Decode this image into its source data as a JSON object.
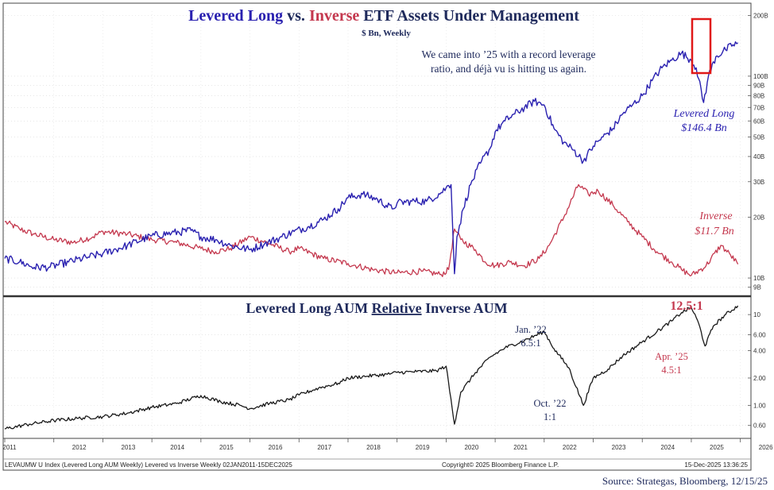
{
  "colors": {
    "levered": "#2a21b0",
    "inverse": "#c4384e",
    "ratio": "#1a1a1a",
    "title_navy": "#1f2a5c",
    "highlight_box": "#e01818"
  },
  "top_chart": {
    "title_part1": "Levered Long",
    "title_part2": " vs. ",
    "title_part3": "Inverse",
    "title_part4": " ETF Assets Under Management",
    "subtitle": "$ Bn, Weekly",
    "annotation_line1": "We came into ’25 with a record leverage",
    "annotation_line2": "ratio, and déjà vu is hitting us again.",
    "levered_label": "Levered Long",
    "levered_value": "$146.4 Bn",
    "inverse_label": "Inverse",
    "inverse_value": "$11.7 Bn"
  },
  "bottom_chart": {
    "title_part1": "Levered Long AUM ",
    "title_part2": "Relative",
    "title_part3": " Inverse AUM",
    "current_label": "12.5:1",
    "jan22_line1": "Jan. ’22",
    "jan22_line2": "6.5:1",
    "oct22_line1": "Oct. ’22",
    "oct22_line2": "1:1",
    "apr25_line1": "Apr. ’25",
    "apr25_line2": "4.5:1"
  },
  "footer": {
    "index_text": "LEVAUMW U Index (Levered Long AUM Weekly) Levered vs Inverse Weekly 02JAN2011-15DEC2025",
    "copyright": "Copyright© 2025 Bloomberg Finance L.P.",
    "timestamp": "15-Dec-2025 13:36:25",
    "source": "Source: Strategas, Bloomberg, 12/15/25"
  },
  "chart_data": [
    {
      "type": "line",
      "title": "Levered Long vs. Inverse ETF Assets Under Management",
      "subtitle": "$ Bn, Weekly",
      "yscale": "log",
      "ylim": [
        8.5,
        210
      ],
      "y_tick_labels": [
        "9B",
        "10B",
        "20B",
        "30B",
        "40B",
        "50B",
        "60B",
        "70B",
        "80B",
        "90B",
        "100B",
        "200B"
      ],
      "y_tick_values": [
        9,
        10,
        20,
        30,
        40,
        50,
        60,
        70,
        80,
        90,
        100,
        200
      ],
      "x_tick_labels": [
        "2011",
        "2012",
        "2013",
        "2014",
        "2015",
        "2016",
        "2017",
        "2018",
        "2019",
        "2020",
        "2021",
        "2022",
        "2023",
        "2024",
        "2025",
        "2026"
      ],
      "xlim": [
        2011.0,
        2026.2
      ],
      "series": [
        {
          "name": "Levered Long",
          "x": [
            2011.0,
            2011.3,
            2011.6,
            2011.9,
            2012.3,
            2012.7,
            2013.0,
            2013.5,
            2014.0,
            2014.4,
            2014.8,
            2015.0,
            2015.3,
            2015.6,
            2016.0,
            2016.3,
            2016.6,
            2016.9,
            2017.2,
            2017.5,
            2017.8,
            2018.0,
            2018.3,
            2018.6,
            2018.9,
            2019.0,
            2019.3,
            2019.6,
            2019.9,
            2020.0,
            2020.1,
            2020.17,
            2020.22,
            2020.35,
            2020.5,
            2020.7,
            2020.9,
            2021.0,
            2021.2,
            2021.4,
            2021.6,
            2021.8,
            2022.0,
            2022.2,
            2022.4,
            2022.6,
            2022.8,
            2023.0,
            2023.2,
            2023.4,
            2023.6,
            2023.8,
            2024.0,
            2024.2,
            2024.4,
            2024.6,
            2024.8,
            2025.0,
            2025.1,
            2025.25,
            2025.35,
            2025.5,
            2025.7,
            2025.85,
            2025.95
          ],
          "values": [
            12.5,
            12.0,
            11.3,
            11.3,
            12.0,
            12.7,
            13.2,
            14.5,
            16.2,
            16.7,
            17.2,
            16.0,
            15.5,
            14.5,
            13.8,
            14.8,
            15.8,
            17.0,
            18.0,
            19.5,
            22.0,
            25.0,
            26.0,
            24.5,
            22.0,
            23.5,
            24.0,
            24.0,
            26.5,
            28.0,
            29.0,
            10.5,
            16.0,
            22.0,
            29.0,
            37.0,
            44.0,
            53.0,
            60.0,
            65.0,
            70.0,
            75.0,
            72.0,
            55.0,
            47.0,
            43.0,
            38.0,
            45.0,
            50.0,
            55.0,
            65.0,
            72.0,
            80.0,
            95.0,
            110.0,
            120.0,
            130.0,
            120.0,
            110.0,
            74.0,
            100.0,
            125.0,
            135.0,
            143.0,
            146.4
          ]
        },
        {
          "name": "Inverse",
          "x": [
            2011.0,
            2011.3,
            2011.6,
            2012.0,
            2012.4,
            2012.8,
            2013.0,
            2013.5,
            2014.0,
            2014.5,
            2015.0,
            2015.3,
            2015.6,
            2016.0,
            2016.4,
            2016.8,
            2017.0,
            2017.5,
            2018.0,
            2018.5,
            2019.0,
            2019.5,
            2019.9,
            2020.05,
            2020.17,
            2020.3,
            2020.6,
            2020.8,
            2021.0,
            2021.3,
            2021.6,
            2021.9,
            2022.1,
            2022.4,
            2022.7,
            2022.9,
            2023.1,
            2023.4,
            2023.7,
            2024.0,
            2024.3,
            2024.6,
            2024.8,
            2025.0,
            2025.3,
            2025.6,
            2025.8,
            2025.95
          ],
          "values": [
            19.0,
            17.5,
            16.5,
            15.5,
            15.0,
            16.0,
            17.0,
            16.5,
            15.5,
            15.0,
            14.0,
            13.5,
            14.0,
            16.0,
            14.8,
            13.5,
            14.0,
            12.5,
            11.8,
            11.0,
            10.6,
            10.8,
            10.4,
            11.0,
            17.5,
            15.5,
            13.8,
            12.0,
            11.5,
            12.0,
            11.5,
            12.5,
            14.5,
            20.0,
            29.0,
            26.0,
            27.0,
            23.0,
            19.0,
            16.0,
            13.5,
            12.0,
            11.0,
            10.3,
            11.5,
            14.5,
            13.0,
            11.7
          ]
        }
      ]
    },
    {
      "type": "line",
      "title": "Levered Long AUM Relative Inverse AUM",
      "yscale": "log",
      "ylim": [
        0.45,
        15
      ],
      "y_tick_labels": [
        "0.60",
        "1.00",
        "2.00",
        "4.00",
        "6.00",
        "10"
      ],
      "y_tick_values": [
        0.6,
        1.0,
        2.0,
        4.0,
        6.0,
        10
      ],
      "x_tick_labels": [
        "2011",
        "2012",
        "2013",
        "2014",
        "2015",
        "2016",
        "2017",
        "2018",
        "2019",
        "2020",
        "2021",
        "2022",
        "2023",
        "2024",
        "2025",
        "2026"
      ],
      "xlim": [
        2011.0,
        2026.2
      ],
      "series": [
        {
          "name": "Levered Long / Inverse ratio",
          "x": [
            2011.0,
            2011.5,
            2012.0,
            2012.5,
            2013.0,
            2013.5,
            2014.0,
            2014.5,
            2015.0,
            2015.4,
            2015.8,
            2016.0,
            2016.4,
            2016.8,
            2017.0,
            2017.4,
            2017.8,
            2018.0,
            2018.4,
            2018.8,
            2019.0,
            2019.4,
            2019.8,
            2020.0,
            2020.17,
            2020.3,
            2020.6,
            2020.9,
            2021.2,
            2021.6,
            2022.0,
            2022.2,
            2022.5,
            2022.8,
            2023.0,
            2023.3,
            2023.6,
            2024.0,
            2024.3,
            2024.6,
            2024.8,
            2025.0,
            2025.15,
            2025.28,
            2025.45,
            2025.7,
            2025.95
          ],
          "values": [
            0.55,
            0.62,
            0.68,
            0.72,
            0.75,
            0.82,
            0.95,
            1.05,
            1.28,
            1.1,
            1.0,
            0.92,
            1.05,
            1.15,
            1.3,
            1.55,
            1.75,
            2.0,
            2.1,
            2.2,
            2.3,
            2.35,
            2.4,
            2.7,
            0.62,
            1.4,
            2.3,
            3.4,
            4.3,
            5.2,
            6.5,
            4.2,
            2.6,
            1.0,
            2.0,
            2.5,
            3.5,
            5.0,
            6.5,
            8.5,
            10.5,
            12.0,
            8.0,
            4.5,
            7.5,
            10.0,
            12.5
          ]
        }
      ]
    }
  ]
}
